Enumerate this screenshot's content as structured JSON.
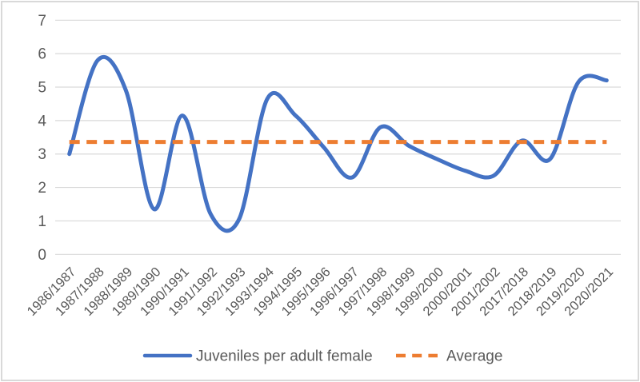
{
  "chart_data": {
    "type": "line",
    "title": "",
    "categories": [
      "1986/1987",
      "1987/1988",
      "1988/1989",
      "1989/1990",
      "1990/1991",
      "1991/1992",
      "1992/1993",
      "1993/1994",
      "1994/1995",
      "1995/1996",
      "1996/1997",
      "1997/1998",
      "1998/1999",
      "1999/2000",
      "2000/2001",
      "2001/2002",
      "2017/2018",
      "2018/2019",
      "2019/2020",
      "2020/2021"
    ],
    "series": [
      {
        "name": "Juveniles per adult female",
        "style": "smooth-solid-line",
        "color": "#4472C4",
        "values": [
          3.0,
          5.8,
          4.9,
          1.35,
          4.15,
          1.2,
          1.05,
          4.65,
          4.15,
          3.2,
          2.3,
          3.8,
          3.25,
          2.85,
          2.5,
          2.35,
          3.4,
          2.85,
          5.15,
          5.2
        ]
      },
      {
        "name": "Average",
        "style": "dashed-constant-line",
        "color": "#ED7D31",
        "value": 3.36
      }
    ],
    "y_axis": {
      "min": 0,
      "max": 7,
      "step": 1,
      "tick_labels": [
        "0",
        "1",
        "2",
        "3",
        "4",
        "5",
        "6",
        "7"
      ]
    },
    "x_axis": {
      "label_rotation_deg": 45
    },
    "grid": "horizontal",
    "legend_position": "bottom",
    "colors": {
      "grid": "#D9D9D9",
      "axis_text": "#595959",
      "frame_border": "#D9D9D9",
      "background": "#FFFFFF"
    }
  }
}
